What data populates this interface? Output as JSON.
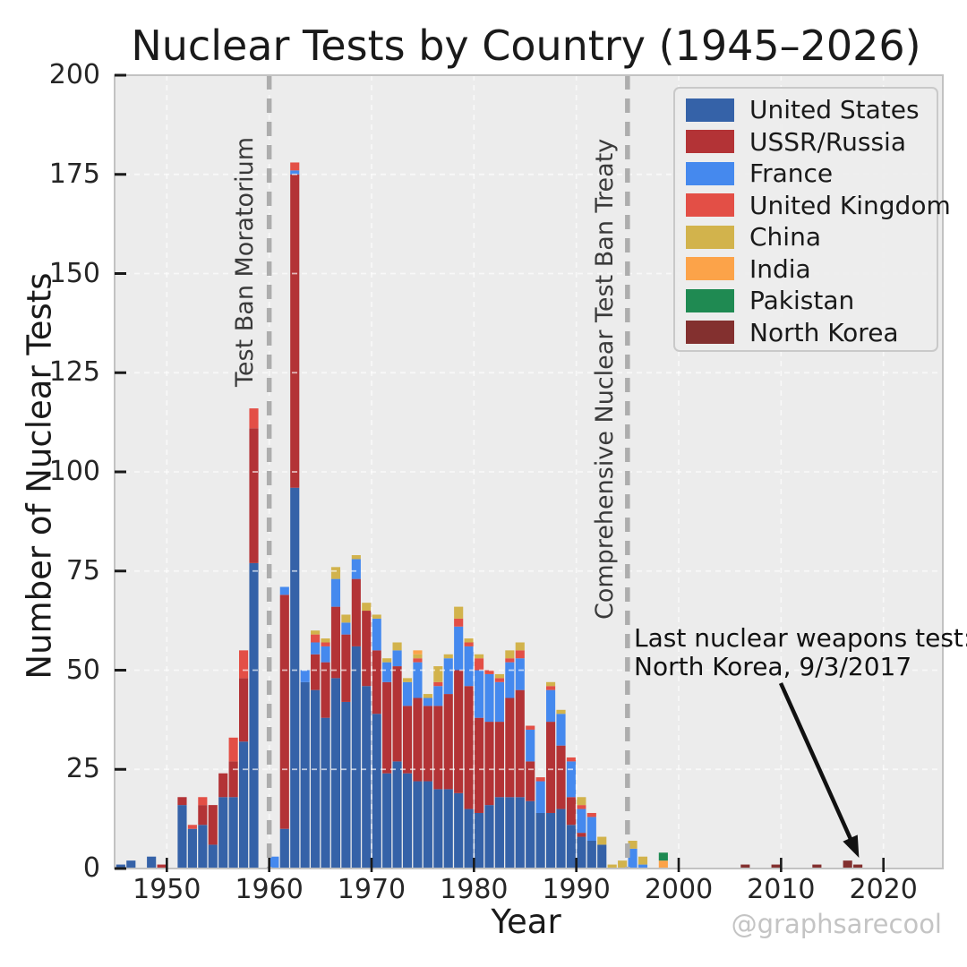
{
  "title": "Nuclear Tests by Country (1945–2026)",
  "watermark": "@graphsarecool",
  "axes": {
    "x_label": "Year",
    "y_label": "Number of Nuclear Tests",
    "x_ticks": [
      1950,
      1960,
      1970,
      1980,
      1990,
      2000,
      2010,
      2020
    ],
    "y_ticks": [
      0,
      25,
      50,
      75,
      100,
      125,
      150,
      175,
      200
    ]
  },
  "annotations": {
    "moratorium": {
      "label": "Test Ban Moratorium",
      "year": 1960
    },
    "ctbt": {
      "label": "Comprehensive Nuclear Test Ban Treaty",
      "year": 1995
    },
    "last_test": {
      "line1": "Last nuclear weapons test:",
      "line2": "North Korea, 9/3/2017",
      "target_year": 2017
    }
  },
  "colors": {
    "plot_bg": "#ececec",
    "grid": "rgba(255,255,255,0.65)",
    "border": "#c2c2c2",
    "event_line": "#adadad",
    "tick": "#1a1a1a",
    "arrow": "#111111"
  },
  "chart_data": {
    "type": "bar",
    "stacked": true,
    "title": "Nuclear Tests by Country (1945–2026)",
    "xlabel": "Year",
    "ylabel": "Number of Nuclear Tests",
    "xlim": [
      1944.9,
      2025.8
    ],
    "ylim": [
      0,
      200
    ],
    "grid": true,
    "legend_position": "upper right",
    "series": [
      {
        "name": "United States",
        "color": "#3562a8"
      },
      {
        "name": "USSR/Russia",
        "color": "#b33336"
      },
      {
        "name": "France",
        "color": "#4589ee"
      },
      {
        "name": "United Kingdom",
        "color": "#e34f46"
      },
      {
        "name": "China",
        "color": "#d2b34c"
      },
      {
        "name": "India",
        "color": "#fca349"
      },
      {
        "name": "Pakistan",
        "color": "#1f8a52"
      },
      {
        "name": "North Korea",
        "color": "#83302f"
      }
    ],
    "years": [
      [
        1945,
        1,
        0,
        0,
        0,
        0,
        0,
        0,
        0
      ],
      [
        1946,
        2,
        0,
        0,
        0,
        0,
        0,
        0,
        0
      ],
      [
        1948,
        3,
        0,
        0,
        0,
        0,
        0,
        0,
        0
      ],
      [
        1949,
        0,
        1,
        0,
        0,
        0,
        0,
        0,
        0
      ],
      [
        1951,
        16,
        2,
        0,
        0,
        0,
        0,
        0,
        0
      ],
      [
        1952,
        10,
        0,
        0,
        1,
        0,
        0,
        0,
        0
      ],
      [
        1953,
        11,
        5,
        0,
        2,
        0,
        0,
        0,
        0
      ],
      [
        1954,
        6,
        10,
        0,
        0,
        0,
        0,
        0,
        0
      ],
      [
        1955,
        18,
        6,
        0,
        0,
        0,
        0,
        0,
        0
      ],
      [
        1956,
        18,
        9,
        0,
        6,
        0,
        0,
        0,
        0
      ],
      [
        1957,
        32,
        16,
        0,
        7,
        0,
        0,
        0,
        0
      ],
      [
        1958,
        77,
        34,
        0,
        5,
        0,
        0,
        0,
        0
      ],
      [
        1960,
        0,
        0,
        3,
        0,
        0,
        0,
        0,
        0
      ],
      [
        1961,
        10,
        59,
        2,
        0,
        0,
        0,
        0,
        0
      ],
      [
        1962,
        96,
        79,
        1,
        2,
        0,
        0,
        0,
        0
      ],
      [
        1963,
        47,
        0,
        3,
        0,
        0,
        0,
        0,
        0
      ],
      [
        1964,
        45,
        9,
        3,
        2,
        1,
        0,
        0,
        0
      ],
      [
        1965,
        38,
        14,
        4,
        1,
        1,
        0,
        0,
        0
      ],
      [
        1966,
        48,
        18,
        7,
        0,
        3,
        0,
        0,
        0
      ],
      [
        1967,
        42,
        17,
        3,
        0,
        2,
        0,
        0,
        0
      ],
      [
        1968,
        56,
        17,
        5,
        0,
        1,
        0,
        0,
        0
      ],
      [
        1969,
        46,
        19,
        0,
        0,
        2,
        0,
        0,
        0
      ],
      [
        1970,
        39,
        16,
        8,
        0,
        1,
        0,
        0,
        0
      ],
      [
        1971,
        24,
        23,
        5,
        0,
        1,
        0,
        0,
        0
      ],
      [
        1972,
        27,
        24,
        4,
        0,
        2,
        0,
        0,
        0
      ],
      [
        1973,
        24,
        17,
        6,
        0,
        1,
        0,
        0,
        0
      ],
      [
        1974,
        22,
        21,
        9,
        1,
        1,
        1,
        0,
        0
      ],
      [
        1975,
        22,
        19,
        2,
        0,
        1,
        0,
        0,
        0
      ],
      [
        1976,
        20,
        21,
        5,
        1,
        4,
        0,
        0,
        0
      ],
      [
        1977,
        20,
        24,
        9,
        0,
        1,
        0,
        0,
        0
      ],
      [
        1978,
        19,
        31,
        11,
        2,
        3,
        0,
        0,
        0
      ],
      [
        1979,
        15,
        31,
        10,
        1,
        1,
        0,
        0,
        0
      ],
      [
        1980,
        14,
        24,
        12,
        3,
        1,
        0,
        0,
        0
      ],
      [
        1981,
        16,
        21,
        12,
        1,
        0,
        0,
        0,
        0
      ],
      [
        1982,
        18,
        19,
        10,
        1,
        1,
        0,
        0,
        0
      ],
      [
        1983,
        18,
        25,
        9,
        1,
        2,
        0,
        0,
        0
      ],
      [
        1984,
        18,
        27,
        8,
        2,
        2,
        0,
        0,
        0
      ],
      [
        1985,
        17,
        10,
        8,
        1,
        0,
        0,
        0,
        0
      ],
      [
        1986,
        14,
        0,
        8,
        1,
        0,
        0,
        0,
        0
      ],
      [
        1987,
        14,
        23,
        8,
        1,
        1,
        0,
        0,
        0
      ],
      [
        1988,
        15,
        16,
        8,
        0,
        1,
        0,
        0,
        0
      ],
      [
        1989,
        11,
        7,
        9,
        1,
        0,
        0,
        0,
        0
      ],
      [
        1990,
        8,
        1,
        6,
        1,
        2,
        0,
        0,
        0
      ],
      [
        1991,
        7,
        0,
        6,
        1,
        0,
        0,
        0,
        0
      ],
      [
        1992,
        6,
        0,
        0,
        0,
        2,
        0,
        0,
        0
      ],
      [
        1993,
        0,
        0,
        0,
        0,
        1,
        0,
        0,
        0
      ],
      [
        1994,
        0,
        0,
        0,
        0,
        2,
        0,
        0,
        0
      ],
      [
        1995,
        0,
        0,
        5,
        0,
        2,
        0,
        0,
        0
      ],
      [
        1996,
        0,
        0,
        1,
        0,
        2,
        0,
        0,
        0
      ],
      [
        1998,
        0,
        0,
        0,
        0,
        0,
        2,
        2,
        0
      ],
      [
        2006,
        0,
        0,
        0,
        0,
        0,
        0,
        0,
        1
      ],
      [
        2009,
        0,
        0,
        0,
        0,
        0,
        0,
        0,
        1
      ],
      [
        2013,
        0,
        0,
        0,
        0,
        0,
        0,
        0,
        1
      ],
      [
        2016,
        0,
        0,
        0,
        0,
        0,
        0,
        0,
        2
      ],
      [
        2017,
        0,
        0,
        0,
        0,
        0,
        0,
        0,
        1
      ]
    ]
  }
}
